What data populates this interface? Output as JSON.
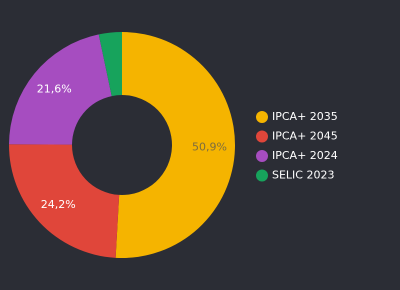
{
  "chart_data": {
    "type": "donut",
    "categories": [
      "IPCA+ 2035",
      "IPCA+ 2045",
      "IPCA+ 2024",
      "SELIC 2023"
    ],
    "values": [
      50.9,
      24.2,
      21.6,
      3.3
    ],
    "value_labels": [
      "50,9%",
      "24,2%",
      "21,6%",
      null
    ],
    "colors": [
      "#f5b400",
      "#e0463a",
      "#a64dc0",
      "#17a35c"
    ],
    "legend": "right"
  }
}
